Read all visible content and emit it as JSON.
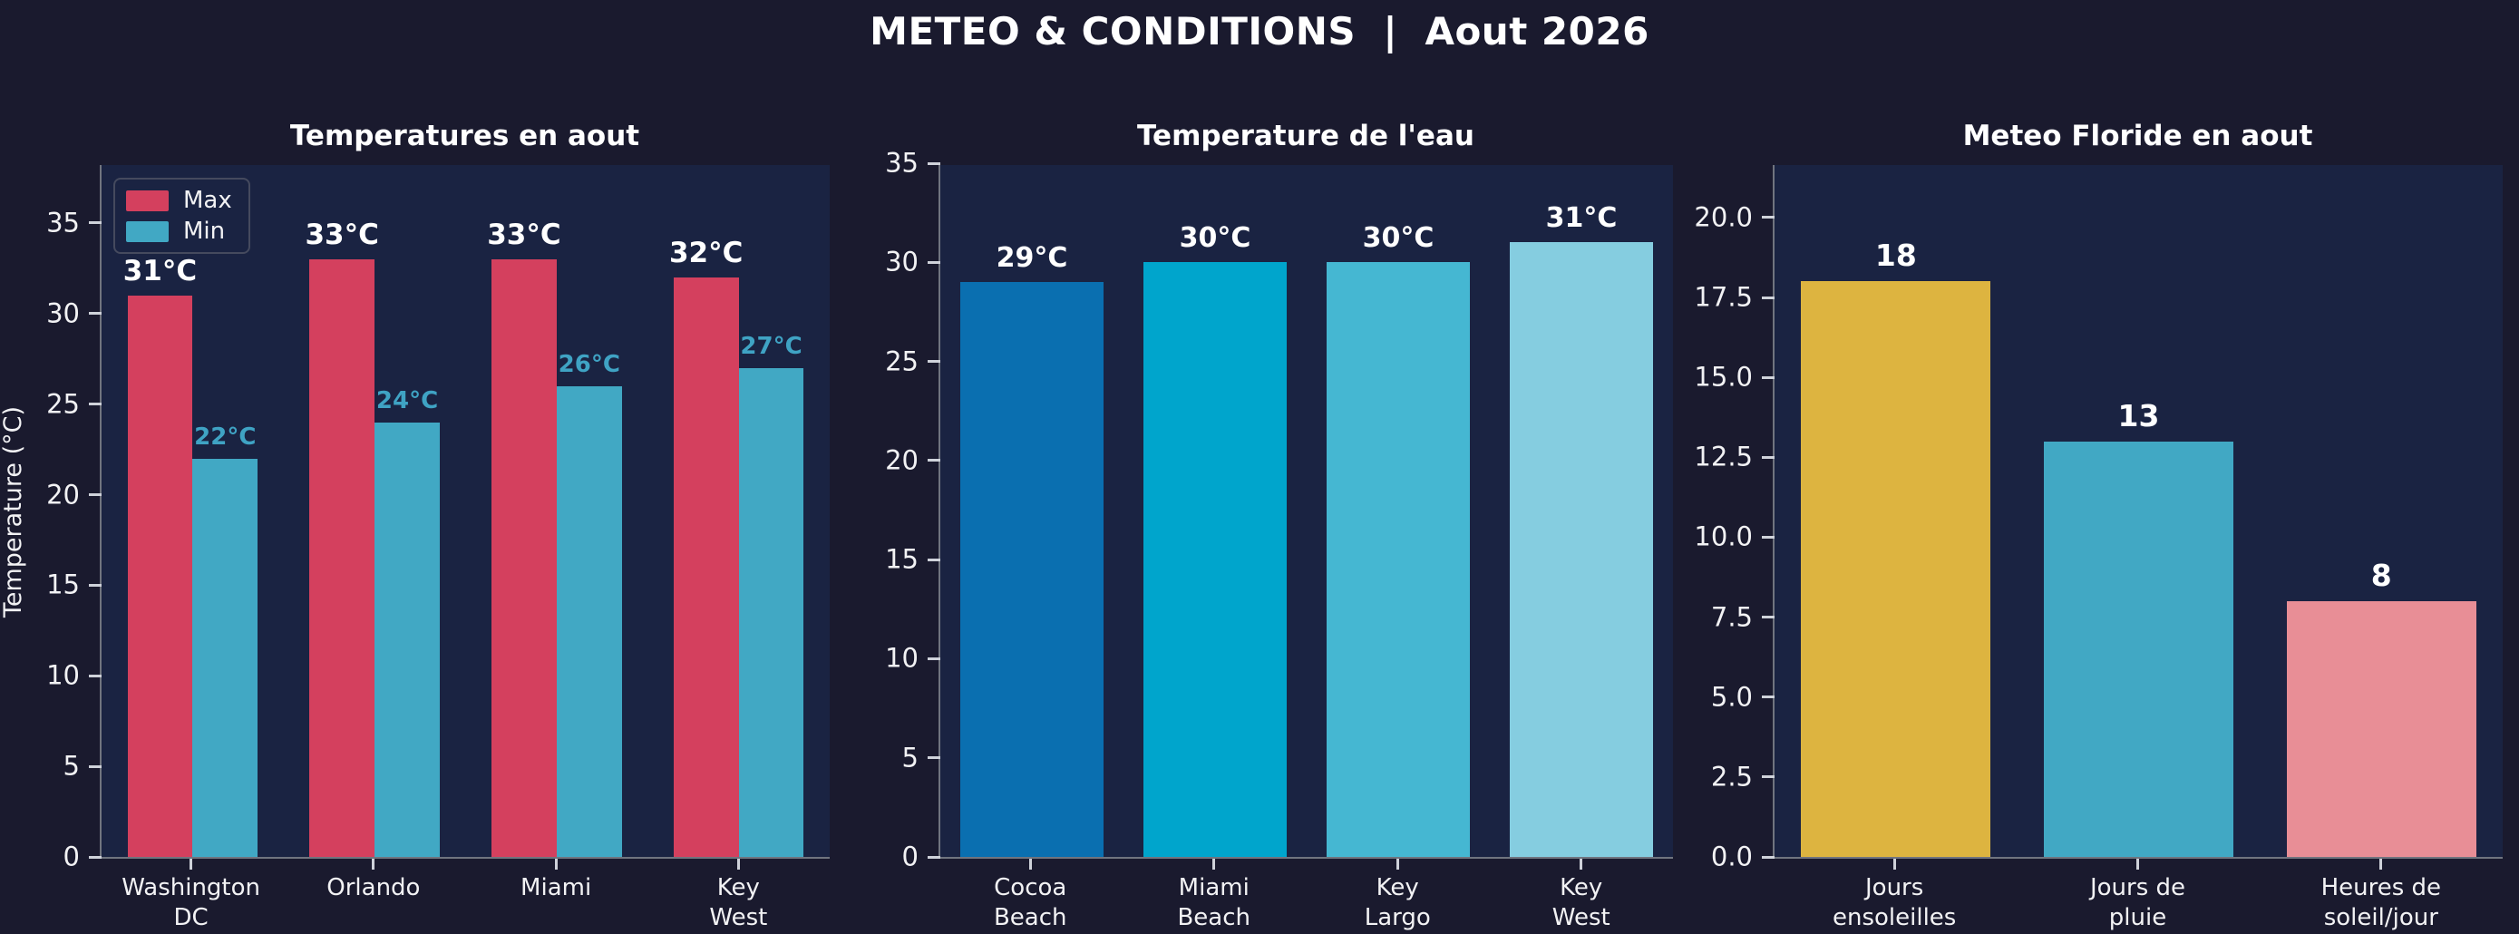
{
  "header": {
    "title": "METEO & CONDITIONS  |  Aout 2026"
  },
  "colors": {
    "figure_background": "#1a1a2e",
    "axes_background": "#1a2342",
    "text": "#f2f2f4",
    "max_bar": "#d4405e",
    "min_bar": "#41a8c4",
    "min_label": "#3fa3c4",
    "spine": "#70747f"
  },
  "chart_data": [
    {
      "type": "bar",
      "title": "Temperatures en aout",
      "ylabel": "Temperature (°C)",
      "categories": [
        "Washington\nDC",
        "Orlando",
        "Miami",
        "Key\nWest"
      ],
      "series": [
        {
          "name": "Max",
          "color": "#d4405e",
          "values": [
            31,
            33,
            33,
            32
          ],
          "labels": [
            "31°C",
            "33°C",
            "33°C",
            "32°C"
          ],
          "label_color": "#ffffff",
          "label_size": 31
        },
        {
          "name": "Min",
          "color": "#41a8c4",
          "values": [
            22,
            24,
            26,
            27
          ],
          "labels": [
            "22°C",
            "24°C",
            "26°C",
            "27°C"
          ],
          "label_color": "#3fa3c4",
          "label_size": 26
        }
      ],
      "ylim": [
        0,
        38.3
      ],
      "yticks": [
        0,
        5,
        10,
        15,
        20,
        25,
        30,
        35
      ],
      "ytick_labels": [
        "0",
        "5",
        "10",
        "15",
        "20",
        "25",
        "30",
        "35"
      ],
      "legend": {
        "position": "upper-left",
        "entries": [
          "Max",
          "Min"
        ]
      },
      "grid": false
    },
    {
      "type": "bar",
      "title": "Temperature de l'eau",
      "ylabel": "",
      "categories": [
        "Cocoa\nBeach",
        "Miami\nBeach",
        "Key\nLargo",
        "Key\nWest"
      ],
      "values": [
        29,
        30,
        30,
        31
      ],
      "labels": [
        "29°C",
        "30°C",
        "30°C",
        "31°C"
      ],
      "bar_colors": [
        "#0a6fb0",
        "#00a5cc",
        "#45b7d2",
        "#85cde0"
      ],
      "label_color": "#ffffff",
      "label_size": 30,
      "ylim": [
        0,
        35
      ],
      "yticks": [
        0,
        5,
        10,
        15,
        20,
        25,
        30,
        35
      ],
      "ytick_labels": [
        "0",
        "5",
        "10",
        "15",
        "20",
        "25",
        "30",
        "35"
      ],
      "grid": false
    },
    {
      "type": "bar",
      "title": "Meteo Floride en aout",
      "ylabel": "",
      "categories": [
        "Jours\nensoleilles",
        "Jours de\npluie",
        "Heures de\nsoleil/jour"
      ],
      "values": [
        18,
        13,
        8
      ],
      "labels": [
        "18",
        "13",
        "8"
      ],
      "bar_colors": [
        "#ddb440",
        "#41a8c4",
        "#e88e96"
      ],
      "label_color": "#ffffff",
      "label_size": 33,
      "ylim": [
        0,
        21.7
      ],
      "yticks": [
        0,
        2.5,
        5,
        7.5,
        10,
        12.5,
        15,
        17.5,
        20
      ],
      "ytick_labels": [
        "0.0",
        "2.5",
        "5.0",
        "7.5",
        "10.0",
        "12.5",
        "15.0",
        "17.5",
        "20.0"
      ],
      "grid": false
    }
  ]
}
